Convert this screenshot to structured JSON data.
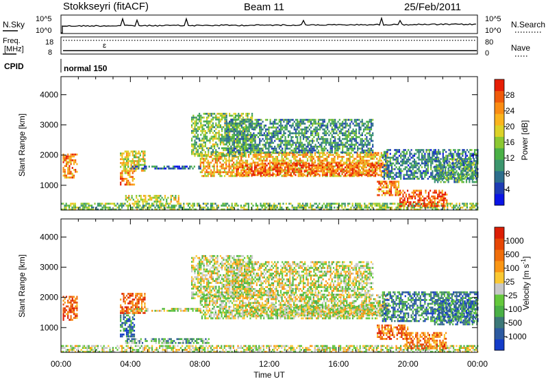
{
  "header": {
    "station": "Stokkseyri (fitACF)",
    "beam": "Beam 11",
    "date": "25/Feb/2011"
  },
  "top_panels": {
    "nsky_label": "N.Sky",
    "nsky_ticks": [
      "10^5",
      "10^0"
    ],
    "nsearch_label": "N.Search",
    "nsearch_ticks": [
      "10^5",
      "10^0"
    ],
    "freq_label_1": "Freq.",
    "freq_label_2": "[MHz]",
    "freq_ticks": [
      "18",
      "8"
    ],
    "nave_label": "Nave",
    "nave_ticks": [
      "80",
      "0"
    ],
    "cpid_label": "CPID",
    "cpid_value": "normal 150"
  },
  "chart_data": [
    {
      "type": "heatmap",
      "panel": "power",
      "ylabel": "Slant Range [km]",
      "yticks": [
        "1000",
        "2000",
        "3000",
        "4000"
      ],
      "ylim": [
        180,
        4600
      ],
      "xlim": [
        0,
        24
      ],
      "xticks": [
        "00:00",
        "04:00",
        "08:00",
        "12:00",
        "16:00",
        "20:00",
        "00:00"
      ],
      "colorbar": {
        "label": "Power [dB]",
        "ticks": [
          "4",
          "8",
          "12",
          "16",
          "20",
          "24",
          "28"
        ],
        "colors": [
          "#0a14e6",
          "#1e3cb4",
          "#2d6e8c",
          "#3c966e",
          "#4ab046",
          "#8cc832",
          "#dcd228",
          "#fab41e",
          "#fa8c14",
          "#f05a0a",
          "#e61e05"
        ]
      },
      "regions": [
        {
          "t": [
            0.1,
            0.9
          ],
          "r": [
            1250,
            2050
          ],
          "level": 0.78
        },
        {
          "t": [
            0.0,
            24.0
          ],
          "r": [
            180,
            420
          ],
          "level": 0.45
        },
        {
          "t": [
            3.4,
            4.2
          ],
          "r": [
            1050,
            1500
          ],
          "level": 0.75
        },
        {
          "t": [
            3.7,
            6.8
          ],
          "r": [
            480,
            680
          ],
          "level": 0.55
        },
        {
          "t": [
            3.4,
            4.8
          ],
          "r": [
            1500,
            2150
          ],
          "level": 0.6
        },
        {
          "t": [
            4.0,
            8.0
          ],
          "r": [
            1550,
            1650
          ],
          "level": 0.2
        },
        {
          "t": [
            8.0,
            18.8
          ],
          "r": [
            1300,
            2100
          ],
          "level": 0.7
        },
        {
          "t": [
            10.0,
            18.5
          ],
          "r": [
            1350,
            1750
          ],
          "level": 0.9
        },
        {
          "t": [
            7.5,
            11.0
          ],
          "r": [
            2000,
            3400
          ],
          "level": 0.45
        },
        {
          "t": [
            9.5,
            18.0
          ],
          "r": [
            2100,
            3200
          ],
          "level": 0.3
        },
        {
          "t": [
            18.5,
            24.0
          ],
          "r": [
            1200,
            2200
          ],
          "level": 0.25
        },
        {
          "t": [
            18.2,
            19.5
          ],
          "r": [
            650,
            1150
          ],
          "level": 0.8
        },
        {
          "t": [
            19.5,
            22.2
          ],
          "r": [
            300,
            850
          ],
          "level": 0.92
        },
        {
          "t": [
            21.5,
            24.0
          ],
          "r": [
            1100,
            1900
          ],
          "level": 0.35
        }
      ]
    },
    {
      "type": "heatmap",
      "panel": "velocity",
      "ylabel": "Slant Range [km]",
      "yticks": [
        "1000",
        "2000",
        "3000",
        "4000"
      ],
      "ylim": [
        180,
        4600
      ],
      "xlim": [
        0,
        24
      ],
      "xticks": [
        "00:00",
        "04:00",
        "08:00",
        "12:00",
        "16:00",
        "20:00",
        "00:00"
      ],
      "xlabel": "Time UT",
      "colorbar": {
        "label": "Velocity [m s^-1]",
        "ticks": [
          "1000",
          "500",
          "100",
          "25",
          "-25",
          "-100",
          "-500",
          "-1000"
        ],
        "colors": [
          "#143cc8",
          "#2d5aa0",
          "#3c7878",
          "#4ab046",
          "#64c83c",
          "#c8c8c8",
          "#fac832",
          "#fa9614",
          "#f06e0a",
          "#e64605",
          "#dc1e05"
        ]
      },
      "regions": [
        {
          "t": [
            0.1,
            0.9
          ],
          "r": [
            1250,
            2050
          ],
          "level": 0.85
        },
        {
          "t": [
            0.0,
            24.0
          ],
          "r": [
            180,
            420
          ],
          "level": 0.5
        },
        {
          "t": [
            3.4,
            4.2
          ],
          "r": [
            700,
            1500
          ],
          "level": 0.15
        },
        {
          "t": [
            3.7,
            8.5
          ],
          "r": [
            480,
            650
          ],
          "level": 0.3
        },
        {
          "t": [
            3.4,
            4.8
          ],
          "r": [
            1500,
            2150
          ],
          "level": 0.85
        },
        {
          "t": [
            4.0,
            8.0
          ],
          "r": [
            1550,
            1650
          ],
          "level": 0.5
        },
        {
          "t": [
            8.0,
            18.8
          ],
          "r": [
            1300,
            2100
          ],
          "level": 0.5
        },
        {
          "t": [
            10.0,
            18.5
          ],
          "r": [
            1400,
            1750
          ],
          "level": 0.5
        },
        {
          "t": [
            7.5,
            11.0
          ],
          "r": [
            2000,
            3400
          ],
          "level": 0.5
        },
        {
          "t": [
            9.5,
            18.0
          ],
          "r": [
            2100,
            3200
          ],
          "level": 0.5
        },
        {
          "t": [
            18.5,
            24.0
          ],
          "r": [
            1200,
            2200
          ],
          "level": 0.2
        },
        {
          "t": [
            18.2,
            20.0
          ],
          "r": [
            650,
            1100
          ],
          "level": 0.8
        },
        {
          "t": [
            19.8,
            22.2
          ],
          "r": [
            300,
            850
          ],
          "level": 0.78
        },
        {
          "t": [
            21.5,
            24.0
          ],
          "r": [
            1100,
            1900
          ],
          "level": 0.2
        }
      ]
    }
  ]
}
